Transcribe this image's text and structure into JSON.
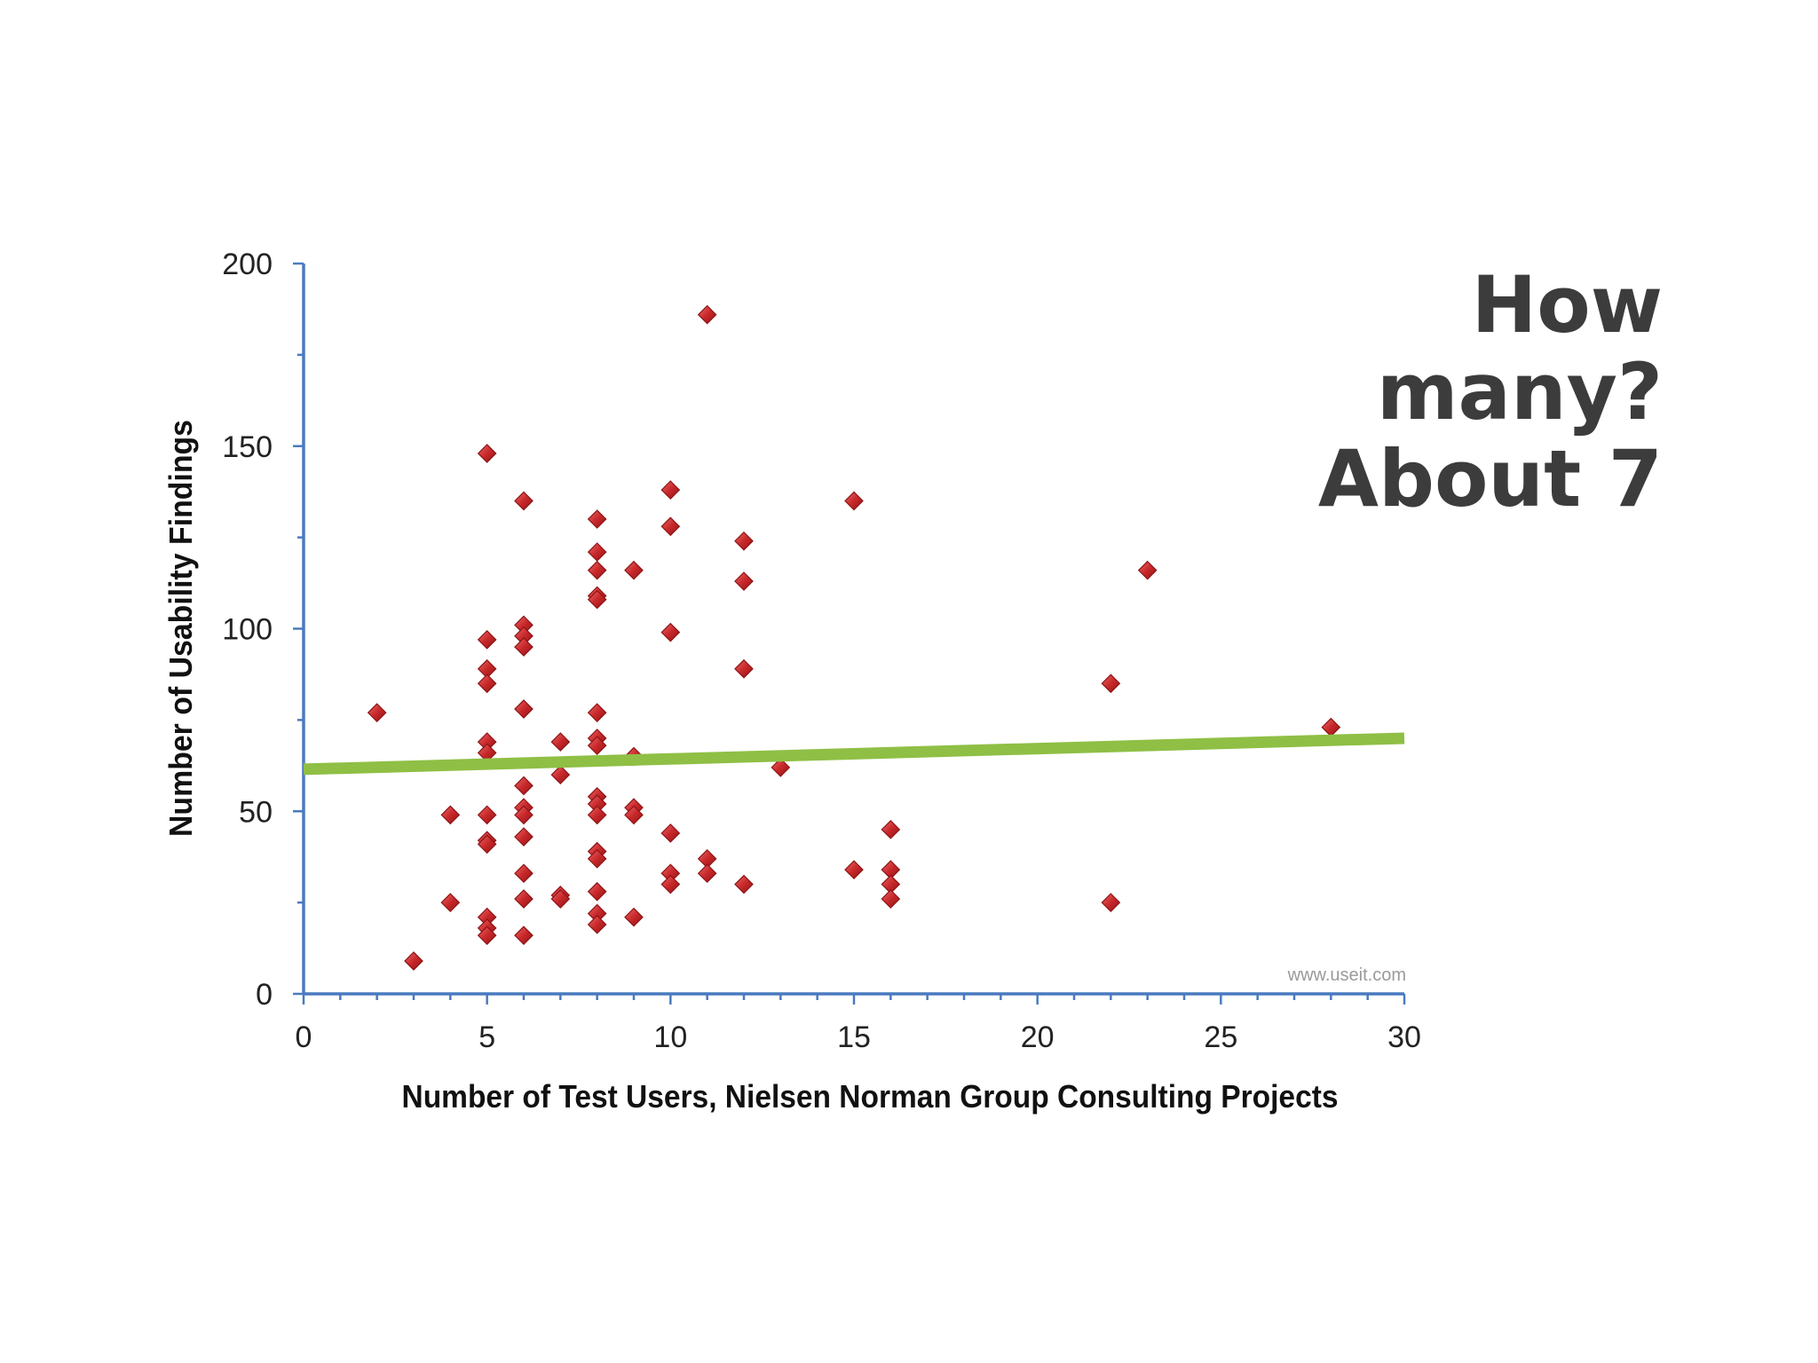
{
  "callout": {
    "line1": "How",
    "line2": "many?",
    "line3": "About 7"
  },
  "watermark": "www.useit.com",
  "colors": {
    "marker": "#c8282a",
    "marker_edge": "#8f1416",
    "axis": "#4a7abf",
    "trendline": "#8fbf45",
    "callout_text": "#3c3c3c"
  },
  "chart_data": {
    "type": "scatter",
    "title": "",
    "xlabel": "Number of Test Users, Nielsen Norman Group Consulting Projects",
    "ylabel": "Number of Usability Findings",
    "xlim": [
      0,
      30
    ],
    "ylim": [
      0,
      200
    ],
    "xticks": [
      0,
      5,
      10,
      15,
      20,
      25,
      30
    ],
    "yticks": [
      0,
      50,
      100,
      150,
      200
    ],
    "x_minor_step": 1,
    "y_minor_step": 25,
    "marker": "diamond",
    "trendline": {
      "x": [
        0,
        30
      ],
      "y": [
        61.5,
        70
      ]
    },
    "points": [
      [
        2,
        77
      ],
      [
        3,
        9
      ],
      [
        4,
        49
      ],
      [
        4,
        25
      ],
      [
        5,
        148
      ],
      [
        5,
        97
      ],
      [
        5,
        89
      ],
      [
        5,
        85
      ],
      [
        5,
        69
      ],
      [
        5,
        66
      ],
      [
        5,
        49
      ],
      [
        5,
        42
      ],
      [
        5,
        41
      ],
      [
        5,
        21
      ],
      [
        5,
        18
      ],
      [
        5,
        16
      ],
      [
        6,
        135
      ],
      [
        6,
        101
      ],
      [
        6,
        98
      ],
      [
        6,
        95
      ],
      [
        6,
        78
      ],
      [
        6,
        57
      ],
      [
        6,
        51
      ],
      [
        6,
        49
      ],
      [
        6,
        43
      ],
      [
        6,
        33
      ],
      [
        6,
        26
      ],
      [
        6,
        16
      ],
      [
        7,
        69
      ],
      [
        7,
        60
      ],
      [
        7,
        27
      ],
      [
        7,
        26
      ],
      [
        8,
        130
      ],
      [
        8,
        121
      ],
      [
        8,
        116
      ],
      [
        8,
        109
      ],
      [
        8,
        108
      ],
      [
        8,
        77
      ],
      [
        8,
        70
      ],
      [
        8,
        68
      ],
      [
        8,
        54
      ],
      [
        8,
        52
      ],
      [
        8,
        49
      ],
      [
        8,
        39
      ],
      [
        8,
        37
      ],
      [
        8,
        28
      ],
      [
        8,
        22
      ],
      [
        8,
        19
      ],
      [
        9,
        116
      ],
      [
        9,
        65
      ],
      [
        9,
        51
      ],
      [
        9,
        49
      ],
      [
        9,
        21
      ],
      [
        10,
        138
      ],
      [
        10,
        128
      ],
      [
        10,
        99
      ],
      [
        10,
        44
      ],
      [
        10,
        33
      ],
      [
        10,
        30
      ],
      [
        11,
        186
      ],
      [
        11,
        37
      ],
      [
        11,
        33
      ],
      [
        12,
        124
      ],
      [
        12,
        113
      ],
      [
        12,
        89
      ],
      [
        12,
        30
      ],
      [
        13,
        62
      ],
      [
        15,
        135
      ],
      [
        15,
        34
      ],
      [
        16,
        45
      ],
      [
        16,
        34
      ],
      [
        16,
        30
      ],
      [
        16,
        26
      ],
      [
        22,
        85
      ],
      [
        22,
        25
      ],
      [
        23,
        116
      ],
      [
        28,
        73
      ]
    ]
  }
}
